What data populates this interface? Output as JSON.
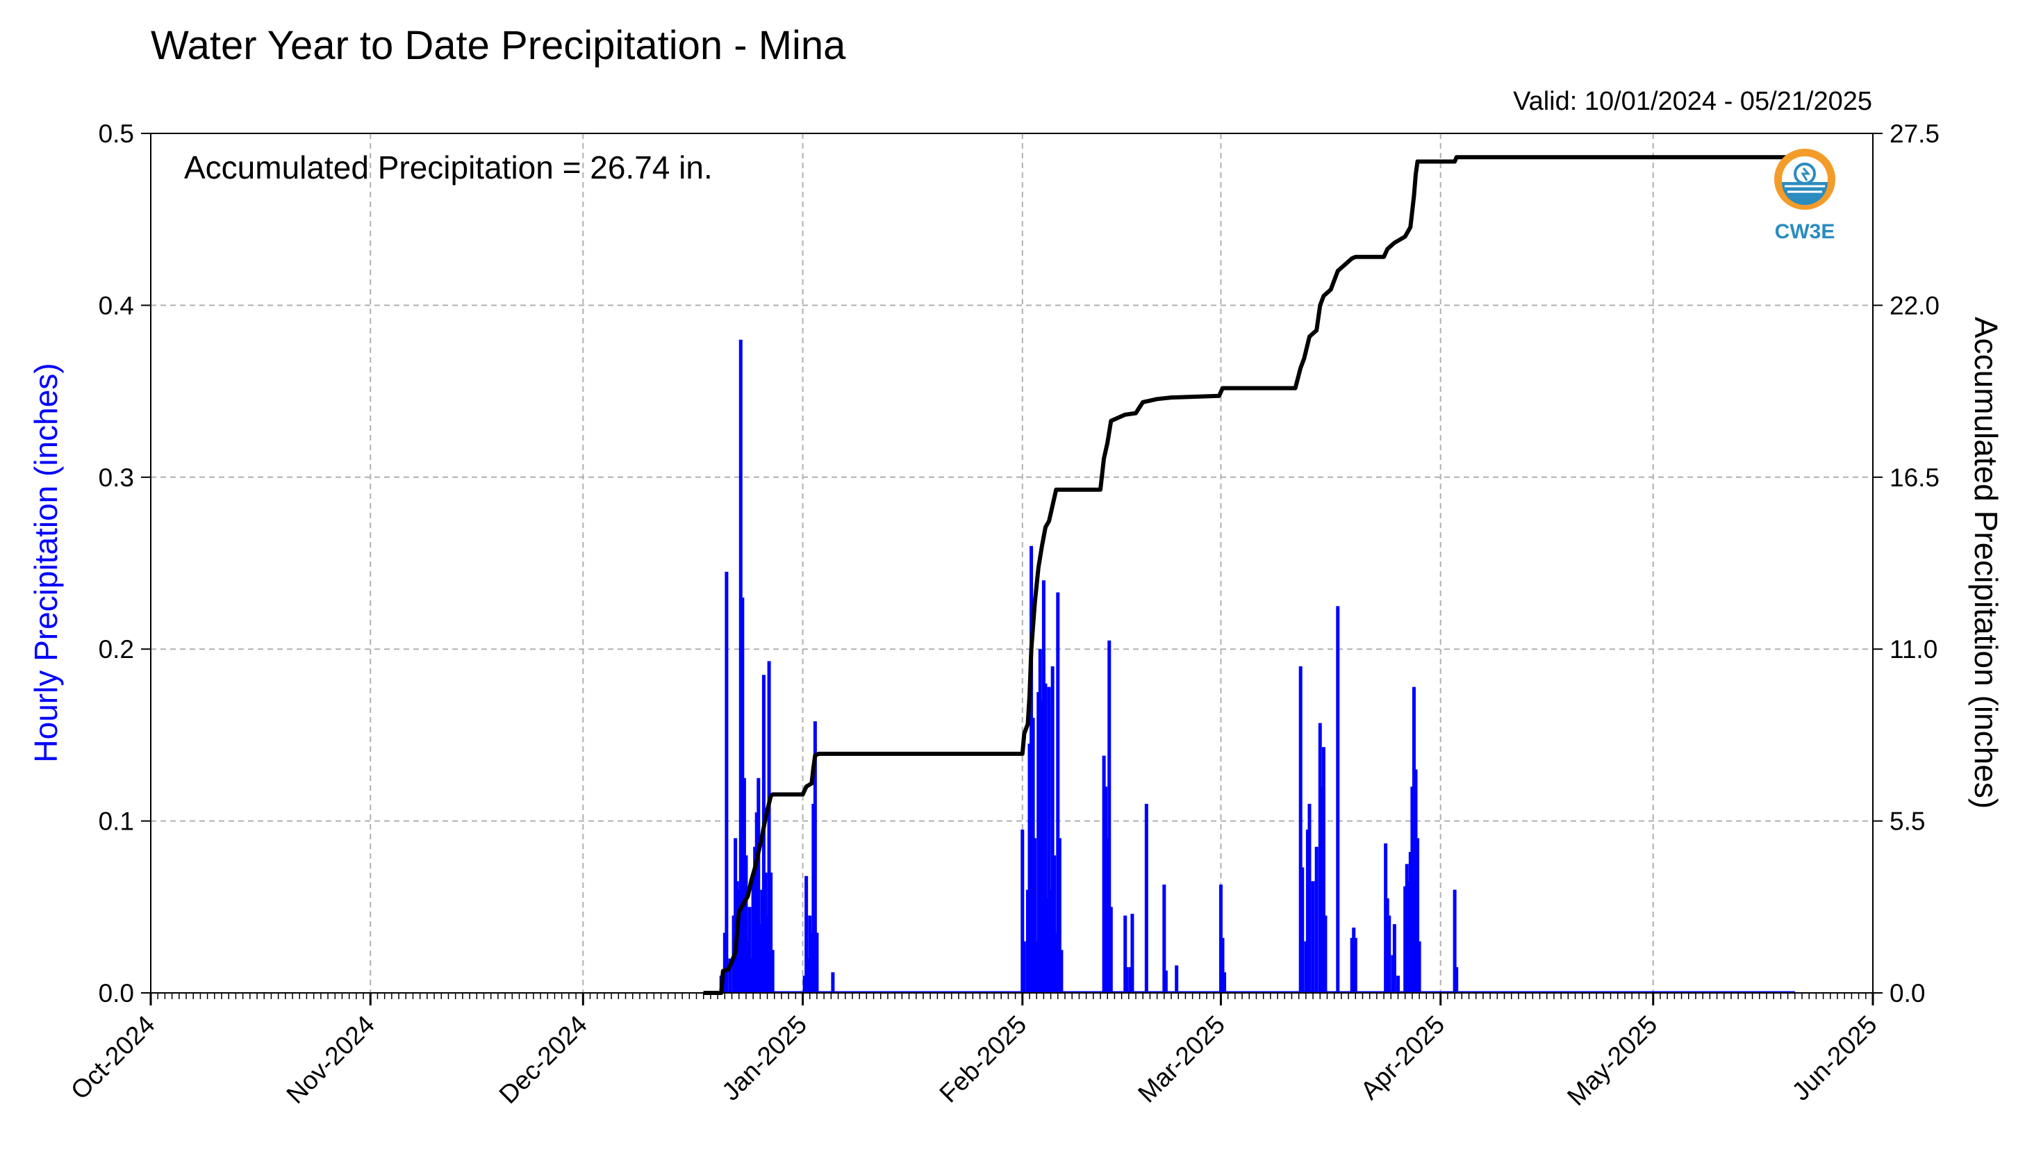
{
  "chart_data": {
    "type": "bar",
    "title": "Water Year to Date Precipitation - Mina",
    "subtitle": "Valid: 10/01/2024 - 05/21/2025",
    "annotation": "Accumulated Precipitation = 26.74 in.",
    "ylabel": "Hourly Precipitation (inches)",
    "y2label": "Accumulated Precipitation (inches)",
    "ylim": [
      0,
      0.5
    ],
    "y2lim": [
      0,
      27.5
    ],
    "yticks": [
      "0.0",
      "0.1",
      "0.2",
      "0.3",
      "0.4",
      "0.5"
    ],
    "y2ticks": [
      "0.0",
      "5.5",
      "11.0",
      "16.5",
      "22.0",
      "27.5"
    ],
    "xlim": [
      "2024-10-01",
      "2025-06-01"
    ],
    "xticks": [
      {
        "label": "Oct-2024",
        "date": "2024-10-01"
      },
      {
        "label": "Nov-2024",
        "date": "2024-11-01"
      },
      {
        "label": "Dec-2024",
        "date": "2024-12-01"
      },
      {
        "label": "Jan-2025",
        "date": "2025-01-01"
      },
      {
        "label": "Feb-2025",
        "date": "2025-02-01"
      },
      {
        "label": "Mar-2025",
        "date": "2025-03-01"
      },
      {
        "label": "Apr-2025",
        "date": "2025-04-01"
      },
      {
        "label": "May-2025",
        "date": "2025-05-01"
      },
      {
        "label": "Jun-2025",
        "date": "2025-06-01"
      }
    ],
    "grid": true,
    "colors": {
      "hourly": "#0000ff",
      "accumulated": "#000000",
      "grid": "#b0b0b0",
      "logo_ring": "#f39c2a",
      "logo_blue": "#2b8cbf"
    },
    "series": [
      {
        "name": "Hourly Precipitation (inches)",
        "type": "bar",
        "points": [
          [
            "2024-12-20T12",
            0.01
          ],
          [
            "2024-12-21T00",
            0.035
          ],
          [
            "2024-12-21T06",
            0.245
          ],
          [
            "2024-12-21T18",
            0.02
          ],
          [
            "2024-12-22T06",
            0.045
          ],
          [
            "2024-12-22T12",
            0.09
          ],
          [
            "2024-12-22T18",
            0.065
          ],
          [
            "2024-12-23T00",
            0.06
          ],
          [
            "2024-12-23T06",
            0.38
          ],
          [
            "2024-12-23T12",
            0.23
          ],
          [
            "2024-12-23T18",
            0.125
          ],
          [
            "2024-12-24T00",
            0.08
          ],
          [
            "2024-12-24T06",
            0.03
          ],
          [
            "2024-12-24T12",
            0.05
          ],
          [
            "2024-12-24T18",
            0.02
          ],
          [
            "2024-12-25T00",
            0.065
          ],
          [
            "2024-12-25T06",
            0.085
          ],
          [
            "2024-12-25T12",
            0.105
          ],
          [
            "2024-12-25T18",
            0.125
          ],
          [
            "2024-12-26T00",
            0.04
          ],
          [
            "2024-12-26T06",
            0.06
          ],
          [
            "2024-12-26T12",
            0.185
          ],
          [
            "2024-12-26T18",
            0.07
          ],
          [
            "2024-12-27T00",
            0.045
          ],
          [
            "2024-12-27T06",
            0.193
          ],
          [
            "2024-12-27T12",
            0.07
          ],
          [
            "2024-12-27T18",
            0.025
          ],
          [
            "2025-01-01T06",
            0.01
          ],
          [
            "2025-01-01T12",
            0.068
          ],
          [
            "2025-01-01T18",
            0.02
          ],
          [
            "2025-01-02T00",
            0.045
          ],
          [
            "2025-01-02T06",
            0.035
          ],
          [
            "2025-01-02T12",
            0.11
          ],
          [
            "2025-01-02T18",
            0.158
          ],
          [
            "2025-01-03T00",
            0.035
          ],
          [
            "2025-01-05T06",
            0.012
          ],
          [
            "2025-02-01T00",
            0.095
          ],
          [
            "2025-02-01T06",
            0.03
          ],
          [
            "2025-02-01T18",
            0.06
          ],
          [
            "2025-02-02T00",
            0.145
          ],
          [
            "2025-02-02T06",
            0.26
          ],
          [
            "2025-02-02T12",
            0.16
          ],
          [
            "2025-02-02T18",
            0.09
          ],
          [
            "2025-02-03T00",
            0.03
          ],
          [
            "2025-02-03T06",
            0.175
          ],
          [
            "2025-02-03T12",
            0.2
          ],
          [
            "2025-02-03T18",
            0.17
          ],
          [
            "2025-02-04T00",
            0.24
          ],
          [
            "2025-02-04T06",
            0.18
          ],
          [
            "2025-02-04T12",
            0.055
          ],
          [
            "2025-02-04T18",
            0.178
          ],
          [
            "2025-02-05T00",
            0.06
          ],
          [
            "2025-02-05T06",
            0.19
          ],
          [
            "2025-02-05T12",
            0.08
          ],
          [
            "2025-02-05T18",
            0.035
          ],
          [
            "2025-02-06T00",
            0.233
          ],
          [
            "2025-02-06T06",
            0.09
          ],
          [
            "2025-02-06T12",
            0.025
          ],
          [
            "2025-02-12T12",
            0.138
          ],
          [
            "2025-02-12T18",
            0.12
          ],
          [
            "2025-02-13T00",
            0.09
          ],
          [
            "2025-02-13T06",
            0.205
          ],
          [
            "2025-02-13T12",
            0.05
          ],
          [
            "2025-02-15T12",
            0.045
          ],
          [
            "2025-02-15T18",
            0.015
          ],
          [
            "2025-02-16T06",
            0.015
          ],
          [
            "2025-02-16T12",
            0.046
          ],
          [
            "2025-02-18T12",
            0.11
          ],
          [
            "2025-02-21T00",
            0.063
          ],
          [
            "2025-02-21T06",
            0.013
          ],
          [
            "2025-02-22T18",
            0.016
          ],
          [
            "2025-03-01T00",
            0.063
          ],
          [
            "2025-03-01T06",
            0.032
          ],
          [
            "2025-03-01T12",
            0.012
          ],
          [
            "2025-03-12T06",
            0.19
          ],
          [
            "2025-03-12T12",
            0.073
          ],
          [
            "2025-03-13T00",
            0.03
          ],
          [
            "2025-03-13T06",
            0.095
          ],
          [
            "2025-03-13T12",
            0.11
          ],
          [
            "2025-03-14T00",
            0.065
          ],
          [
            "2025-03-14T12",
            0.085
          ],
          [
            "2025-03-15T00",
            0.157
          ],
          [
            "2025-03-15T06",
            0.12
          ],
          [
            "2025-03-15T12",
            0.143
          ],
          [
            "2025-03-15T18",
            0.045
          ],
          [
            "2025-03-17T12",
            0.225
          ],
          [
            "2025-03-19T12",
            0.032
          ],
          [
            "2025-03-19T18",
            0.038
          ],
          [
            "2025-03-20T00",
            0.032
          ],
          [
            "2025-03-24T06",
            0.087
          ],
          [
            "2025-03-24T12",
            0.055
          ],
          [
            "2025-03-24T18",
            0.045
          ],
          [
            "2025-03-25T06",
            0.022
          ],
          [
            "2025-03-25T12",
            0.04
          ],
          [
            "2025-03-26T00",
            0.01
          ],
          [
            "2025-03-27T00",
            0.062
          ],
          [
            "2025-03-27T06",
            0.075
          ],
          [
            "2025-03-27T12",
            0.065
          ],
          [
            "2025-03-27T18",
            0.082
          ],
          [
            "2025-03-28T00",
            0.12
          ],
          [
            "2025-03-28T06",
            0.178
          ],
          [
            "2025-03-28T12",
            0.13
          ],
          [
            "2025-03-28T18",
            0.09
          ],
          [
            "2025-03-29T00",
            0.03
          ],
          [
            "2025-04-03T00",
            0.06
          ],
          [
            "2025-04-03T06",
            0.015
          ]
        ]
      },
      {
        "name": "Accumulated Precipitation (inches)",
        "type": "line",
        "points": [
          [
            "2024-12-18T00",
            0.0
          ],
          [
            "2024-12-20T12",
            0.0
          ],
          [
            "2024-12-20T18",
            0.7
          ],
          [
            "2024-12-21T12",
            0.75
          ],
          [
            "2024-12-22T00",
            1.0
          ],
          [
            "2024-12-22T12",
            1.3
          ],
          [
            "2024-12-23T00",
            2.6
          ],
          [
            "2024-12-23T18",
            2.9
          ],
          [
            "2024-12-24T06",
            3.1
          ],
          [
            "2024-12-24T18",
            3.6
          ],
          [
            "2024-12-25T06",
            4.0
          ],
          [
            "2024-12-25T18",
            4.5
          ],
          [
            "2024-12-26T06",
            5.0
          ],
          [
            "2024-12-26T18",
            5.6
          ],
          [
            "2024-12-27T12",
            6.3
          ],
          [
            "2024-12-27T18",
            6.35
          ],
          [
            "2025-01-01T00",
            6.35
          ],
          [
            "2025-01-01T12",
            6.6
          ],
          [
            "2025-01-02T06",
            6.7
          ],
          [
            "2025-01-02T12",
            7.2
          ],
          [
            "2025-01-02T18",
            7.6
          ],
          [
            "2025-01-03T06",
            7.65
          ],
          [
            "2025-01-05T12",
            7.65
          ],
          [
            "2025-02-01T00",
            7.65
          ],
          [
            "2025-02-01T06",
            8.3
          ],
          [
            "2025-02-01T18",
            8.6
          ],
          [
            "2025-02-02T00",
            9.5
          ],
          [
            "2025-02-02T06",
            11.0
          ],
          [
            "2025-02-02T18",
            12.5
          ],
          [
            "2025-02-03T06",
            13.6
          ],
          [
            "2025-02-03T18",
            14.3
          ],
          [
            "2025-02-04T06",
            14.9
          ],
          [
            "2025-02-04T18",
            15.1
          ],
          [
            "2025-02-05T06",
            15.6
          ],
          [
            "2025-02-05T18",
            16.1
          ],
          [
            "2025-02-06T12",
            16.1
          ],
          [
            "2025-02-12T00",
            16.1
          ],
          [
            "2025-02-12T12",
            17.1
          ],
          [
            "2025-02-13T00",
            17.6
          ],
          [
            "2025-02-13T12",
            18.3
          ],
          [
            "2025-02-14T12",
            18.4
          ],
          [
            "2025-02-15T12",
            18.5
          ],
          [
            "2025-02-17T00",
            18.55
          ],
          [
            "2025-02-18T00",
            18.9
          ],
          [
            "2025-02-20T00",
            19.0
          ],
          [
            "2025-02-22T00",
            19.05
          ],
          [
            "2025-02-28T18",
            19.1
          ],
          [
            "2025-03-01T06",
            19.35
          ],
          [
            "2025-03-11T12",
            19.35
          ],
          [
            "2025-03-12T06",
            20.0
          ],
          [
            "2025-03-12T18",
            20.3
          ],
          [
            "2025-03-13T12",
            21.0
          ],
          [
            "2025-03-14T12",
            21.2
          ],
          [
            "2025-03-15T00",
            22.0
          ],
          [
            "2025-03-15T12",
            22.3
          ],
          [
            "2025-03-16T12",
            22.5
          ],
          [
            "2025-03-17T12",
            23.1
          ],
          [
            "2025-03-18T00",
            23.2
          ],
          [
            "2025-03-19T12",
            23.5
          ],
          [
            "2025-03-20T00",
            23.55
          ],
          [
            "2025-03-24T00",
            23.55
          ],
          [
            "2025-03-24T12",
            23.8
          ],
          [
            "2025-03-25T12",
            24.0
          ],
          [
            "2025-03-27T00",
            24.2
          ],
          [
            "2025-03-27T18",
            24.5
          ],
          [
            "2025-03-28T06",
            25.5
          ],
          [
            "2025-03-28T12",
            26.2
          ],
          [
            "2025-03-28T18",
            26.6
          ],
          [
            "2025-04-03T00",
            26.6
          ],
          [
            "2025-04-03T06",
            26.74
          ],
          [
            "2025-05-21T00",
            26.74
          ]
        ]
      }
    ]
  },
  "logo": {
    "text": "CW3E"
  }
}
